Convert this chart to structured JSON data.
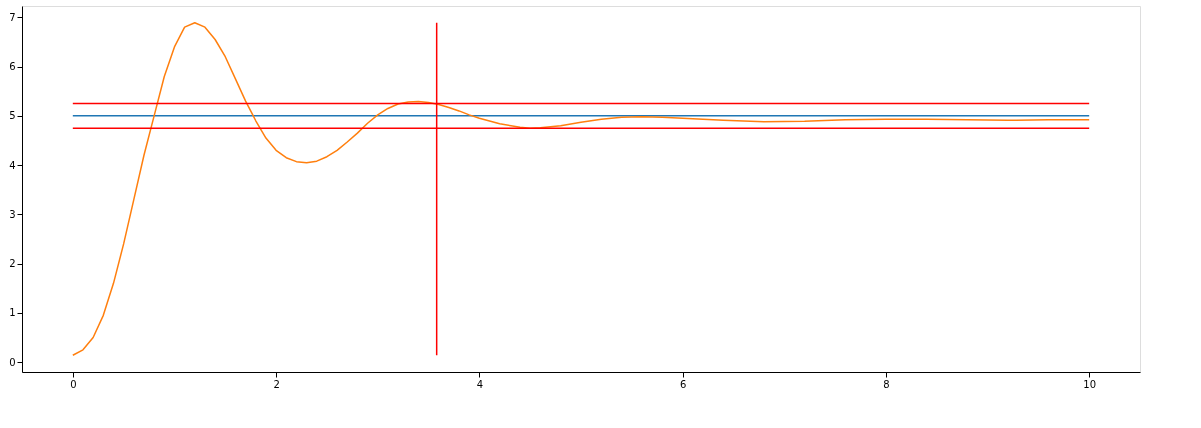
{
  "chart_data": {
    "type": "line",
    "xlim": [
      -0.5,
      10.5
    ],
    "ylim": [
      -0.2,
      7.23
    ],
    "xticks": [
      0,
      2,
      4,
      6,
      8,
      10
    ],
    "yticks": [
      0,
      1,
      2,
      3,
      4,
      5,
      6,
      7
    ],
    "grid": false,
    "legend": false,
    "series": [
      {
        "color": "#1f77b4",
        "x": [
          0,
          10
        ],
        "values": [
          5,
          5
        ]
      },
      {
        "color": "#ff7f0e",
        "x": [
          0,
          0.1,
          0.2,
          0.3,
          0.4,
          0.5,
          0.6,
          0.7,
          0.8,
          0.9,
          1.0,
          1.1,
          1.2,
          1.3,
          1.4,
          1.5,
          1.6,
          1.7,
          1.8,
          1.9,
          2.0,
          2.1,
          2.2,
          2.3,
          2.4,
          2.5,
          2.6,
          2.7,
          2.8,
          2.9,
          3.0,
          3.1,
          3.2,
          3.3,
          3.4,
          3.5,
          3.6,
          3.7,
          3.8,
          3.9,
          4.0,
          4.2,
          4.4,
          4.5,
          4.6,
          4.8,
          5.0,
          5.2,
          5.4,
          5.6,
          5.8,
          6.0,
          6.4,
          6.8,
          7.2,
          7.6,
          8.0,
          8.4,
          8.8,
          9.2,
          9.6,
          10
        ],
        "values": [
          0.14,
          0.25,
          0.5,
          0.95,
          1.6,
          2.4,
          3.3,
          4.2,
          5.0,
          5.8,
          6.4,
          6.8,
          6.89,
          6.8,
          6.55,
          6.2,
          5.75,
          5.3,
          4.9,
          4.55,
          4.3,
          4.15,
          4.07,
          4.05,
          4.08,
          4.17,
          4.3,
          4.47,
          4.65,
          4.85,
          5.02,
          5.15,
          5.24,
          5.28,
          5.29,
          5.27,
          5.23,
          5.17,
          5.1,
          5.02,
          4.95,
          4.84,
          4.77,
          4.75,
          4.76,
          4.8,
          4.87,
          4.93,
          4.97,
          4.98,
          4.97,
          4.95,
          4.91,
          4.88,
          4.89,
          4.92,
          4.93,
          4.93,
          4.92,
          4.91,
          4.92,
          4.92
        ]
      },
      {
        "color": "#ff0000",
        "x": [
          0,
          10
        ],
        "values": [
          5.25,
          5.25
        ]
      },
      {
        "color": "#ff0000",
        "x": [
          0,
          10
        ],
        "values": [
          4.75,
          4.75
        ]
      },
      {
        "color": "#ff0000",
        "x": [
          3.58,
          3.58
        ],
        "values": [
          0.14,
          6.89
        ]
      }
    ]
  }
}
